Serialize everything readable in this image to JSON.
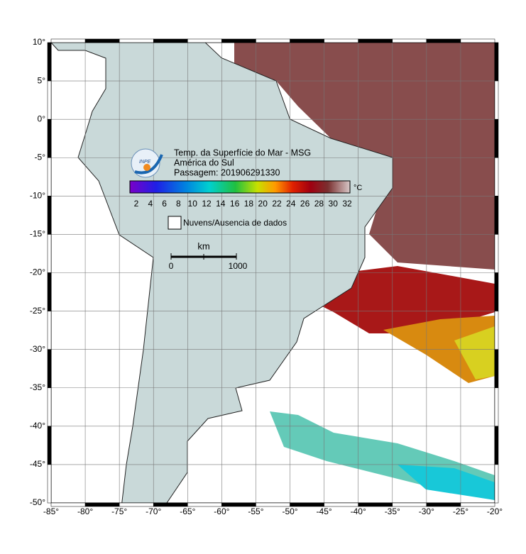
{
  "header": {
    "title_lines": [
      "Temp. da Superfície do Mar - MSG",
      "América do Sul",
      "Passagem: 201906291330"
    ],
    "logo": "INPE"
  },
  "colorbar": {
    "labels": [
      2,
      4,
      6,
      8,
      10,
      12,
      14,
      16,
      18,
      20,
      22,
      24,
      26,
      28,
      30,
      32
    ],
    "unit": "°C"
  },
  "legend": {
    "label": "Nuvens/Ausencia de dados"
  },
  "scale_bar": {
    "unit": "km",
    "start": 0,
    "end": 1000
  },
  "axes": {
    "lat_labels": [
      "10°",
      "5°",
      "0°",
      "-5°",
      "-10°",
      "-15°",
      "-20°",
      "-25°",
      "-30°",
      "-35°",
      "-40°",
      "-45°",
      "-50°"
    ],
    "lon_labels": [
      "-85°",
      "-80°",
      "-75°",
      "-70°",
      "-65°",
      "-60°",
      "-55°",
      "-50°",
      "-45°",
      "-40°",
      "-35°",
      "-30°",
      "-25°",
      "-20°"
    ]
  }
}
